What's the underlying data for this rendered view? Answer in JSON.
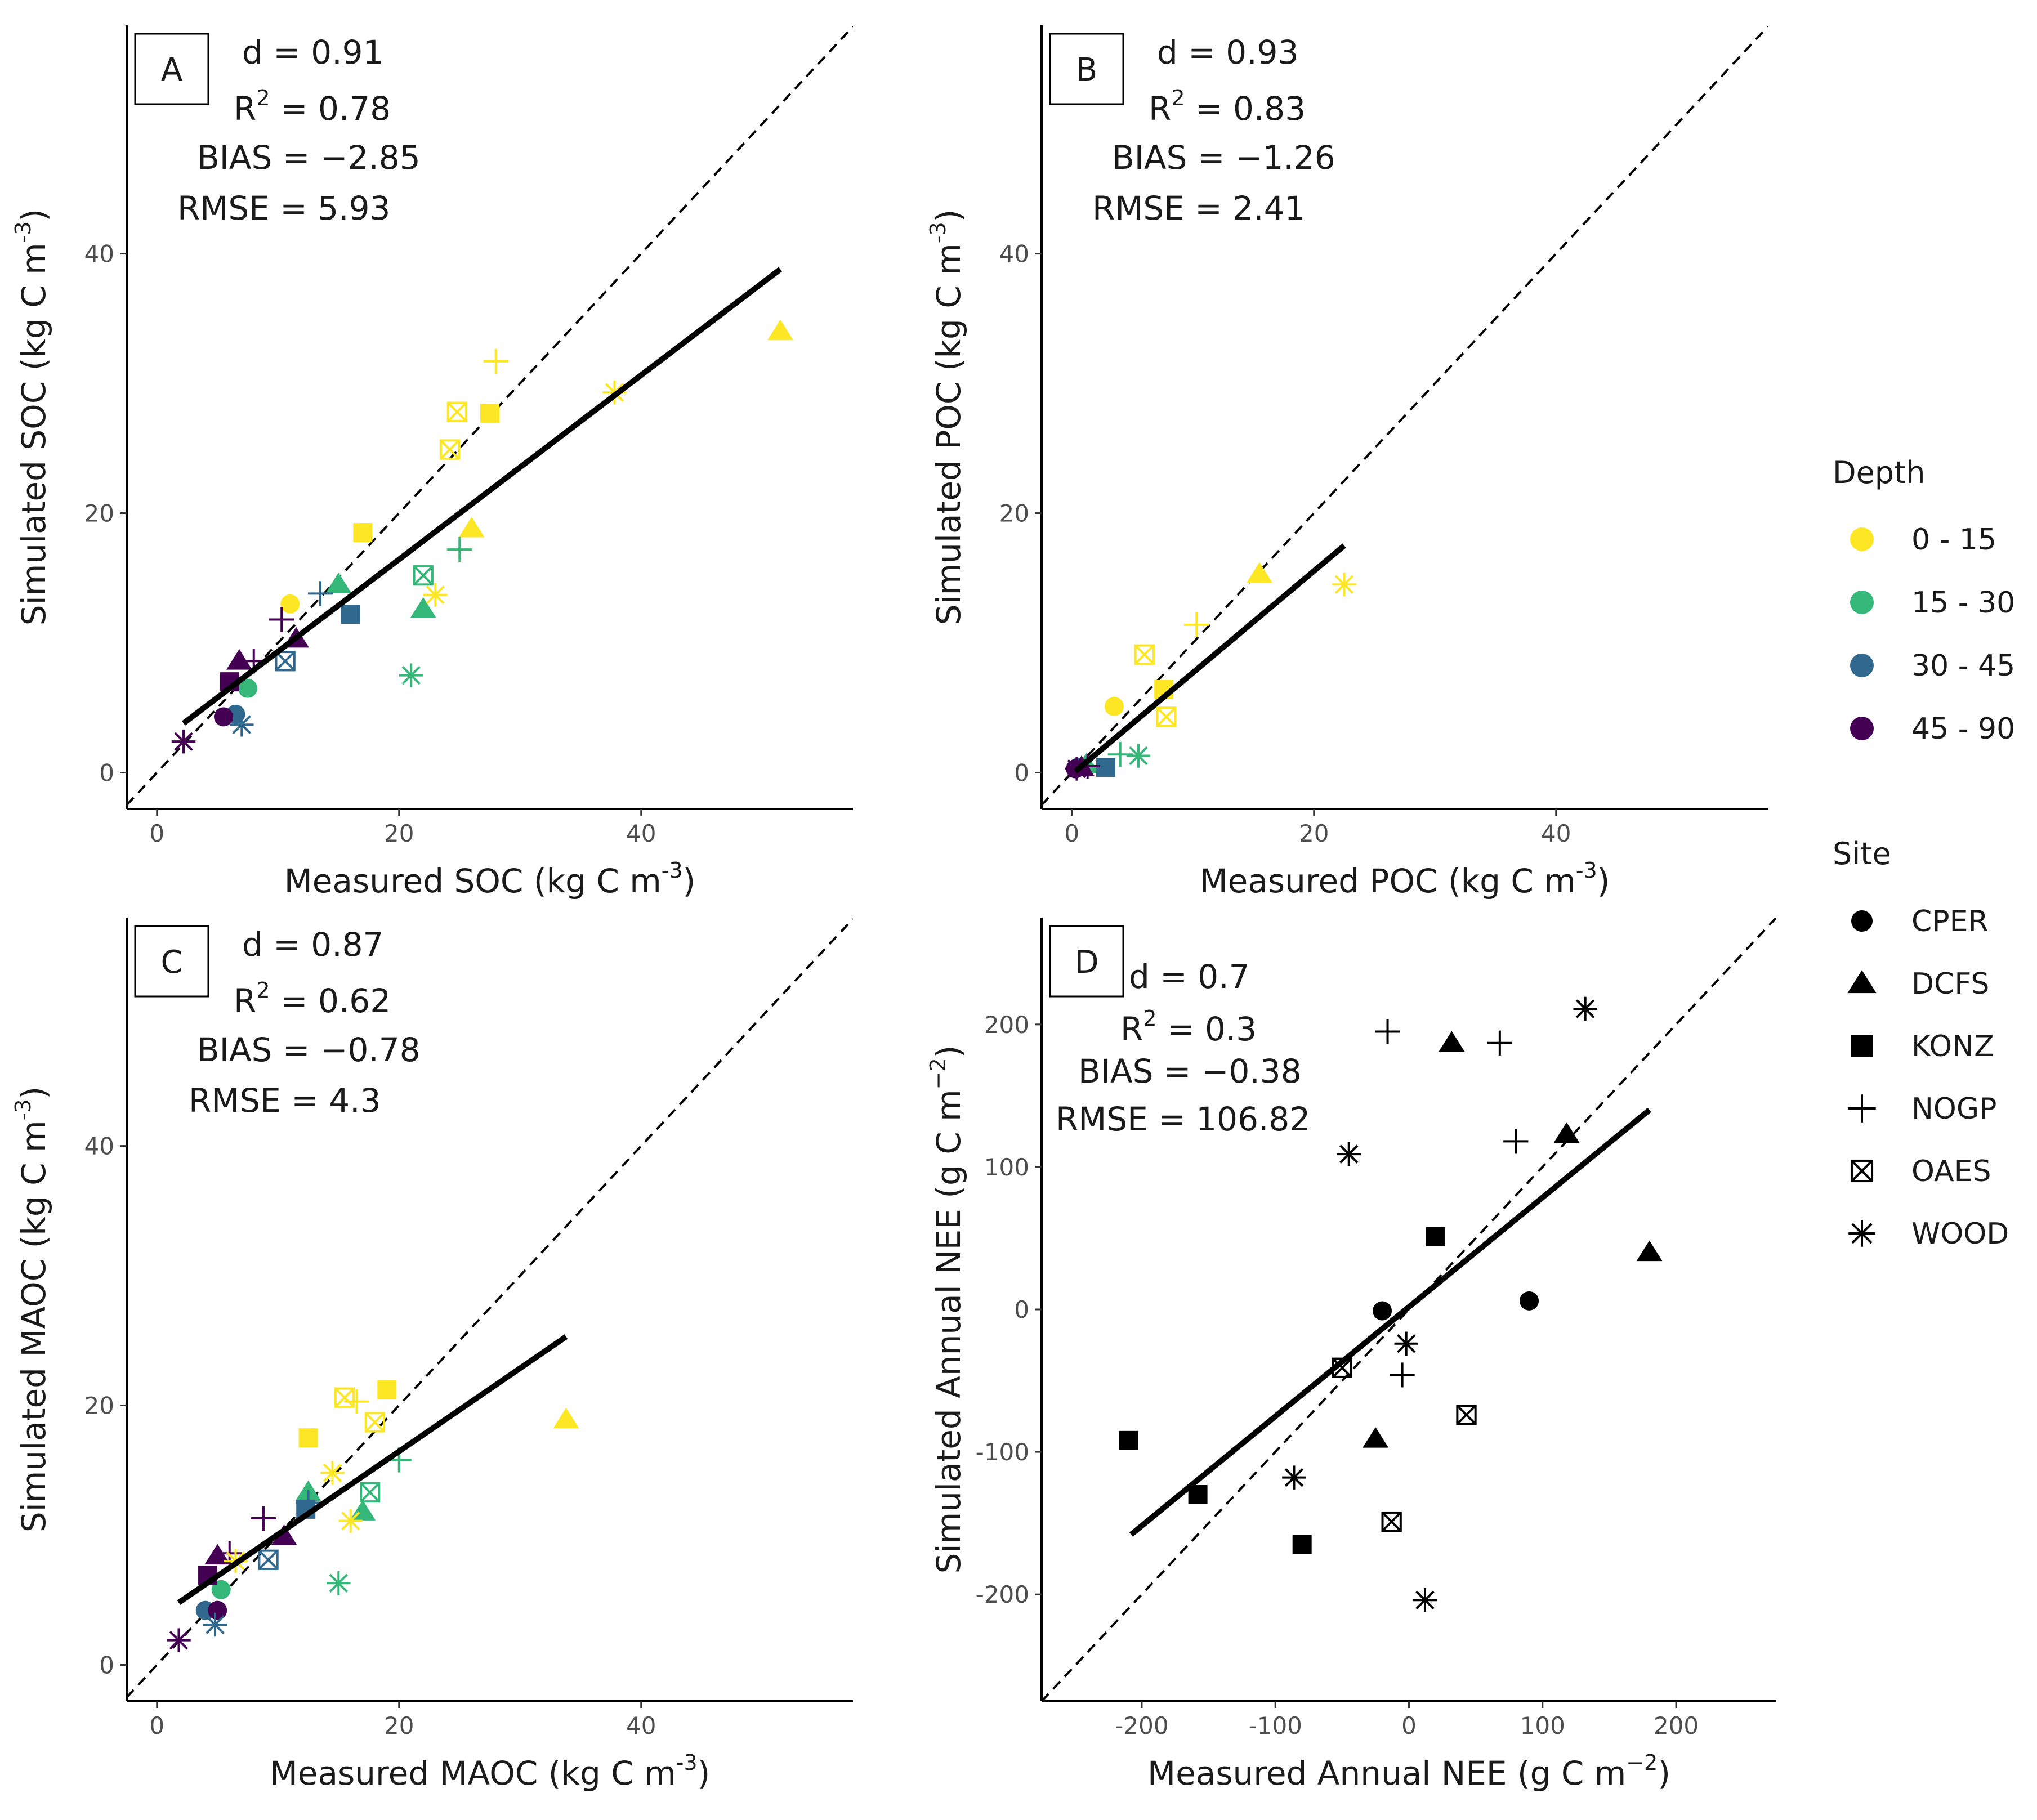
{
  "colors": {
    "depth_0_15": "#FDE725",
    "depth_15_30": "#35B779",
    "depth_30_45": "#31688E",
    "depth_45_90": "#440154",
    "black": "#000000"
  },
  "legend": {
    "depth_title": "Depth",
    "depth_items": [
      {
        "label": "0 - 15",
        "color_key": "depth_0_15"
      },
      {
        "label": "15 - 30",
        "color_key": "depth_15_30"
      },
      {
        "label": "30 - 45",
        "color_key": "depth_30_45"
      },
      {
        "label": "45 - 90",
        "color_key": "depth_45_90"
      }
    ],
    "site_title": "Site",
    "site_items": [
      {
        "label": "CPER",
        "shape": "circle"
      },
      {
        "label": "DCFS",
        "shape": "triangle"
      },
      {
        "label": "KONZ",
        "shape": "square"
      },
      {
        "label": "NOGP",
        "shape": "plus"
      },
      {
        "label": "OAES",
        "shape": "boxx"
      },
      {
        "label": "WOOD",
        "shape": "asterisk"
      }
    ]
  },
  "chart_data": [
    {
      "panel": "A",
      "type": "scatter",
      "xlabel": "Measured SOC (kg C m",
      "ylabel": "Simulated SOC (kg C m",
      "unit_sup": "-3",
      "xlim": [
        -2.5,
        57.5
      ],
      "ylim": [
        -2.8,
        57.6
      ],
      "xticks": [
        0,
        20,
        40
      ],
      "yticks": [
        0,
        20,
        40
      ],
      "stats": {
        "d": "d = 0.91",
        "r2_base": "R",
        "r2_sup": "2",
        "r2_val": " = 0.78",
        "bias": "BIAS = −2.85",
        "rmse": "RMSE = 5.93"
      },
      "fit": {
        "x1": 2.2,
        "y1": 3.8,
        "x2": 51.5,
        "y2": 38.8
      },
      "points": [
        {
          "x": 11,
          "y": 13,
          "shape": "circle",
          "depth": "depth_0_15"
        },
        {
          "x": 7.5,
          "y": 6.5,
          "shape": "circle",
          "depth": "depth_15_30"
        },
        {
          "x": 6.5,
          "y": 4.5,
          "shape": "circle",
          "depth": "depth_30_45"
        },
        {
          "x": 5.5,
          "y": 4.3,
          "shape": "circle",
          "depth": "depth_45_90"
        },
        {
          "x": 51.5,
          "y": 34,
          "shape": "triangle",
          "depth": "depth_0_15"
        },
        {
          "x": 26,
          "y": 18.8,
          "shape": "triangle",
          "depth": "depth_0_15"
        },
        {
          "x": 22,
          "y": 12.6,
          "shape": "triangle",
          "depth": "depth_15_30"
        },
        {
          "x": 15,
          "y": 14.5,
          "shape": "triangle",
          "depth": "depth_15_30"
        },
        {
          "x": 6.8,
          "y": 8.6,
          "shape": "triangle",
          "depth": "depth_45_90"
        },
        {
          "x": 11.5,
          "y": 10.3,
          "shape": "triangle",
          "depth": "depth_45_90"
        },
        {
          "x": 27.5,
          "y": 27.7,
          "shape": "square",
          "depth": "depth_0_15"
        },
        {
          "x": 17,
          "y": 18.5,
          "shape": "square",
          "depth": "depth_0_15"
        },
        {
          "x": 16,
          "y": 12.2,
          "shape": "square",
          "depth": "depth_30_45"
        },
        {
          "x": 6,
          "y": 7,
          "shape": "square",
          "depth": "depth_45_90"
        },
        {
          "x": 28,
          "y": 31.7,
          "shape": "plus",
          "depth": "depth_0_15"
        },
        {
          "x": 25,
          "y": 17.2,
          "shape": "plus",
          "depth": "depth_15_30"
        },
        {
          "x": 13.5,
          "y": 13.8,
          "shape": "plus",
          "depth": "depth_30_45"
        },
        {
          "x": 10.3,
          "y": 11.8,
          "shape": "plus",
          "depth": "depth_45_90"
        },
        {
          "x": 8,
          "y": 8.6,
          "shape": "plus",
          "depth": "depth_45_90"
        },
        {
          "x": 24.8,
          "y": 27.8,
          "shape": "boxx",
          "depth": "depth_0_15"
        },
        {
          "x": 24.2,
          "y": 24.9,
          "shape": "boxx",
          "depth": "depth_0_15"
        },
        {
          "x": 22,
          "y": 15.2,
          "shape": "boxx",
          "depth": "depth_15_30"
        },
        {
          "x": 10.6,
          "y": 8.6,
          "shape": "boxx",
          "depth": "depth_30_45"
        },
        {
          "x": 37.8,
          "y": 29.3,
          "shape": "asterisk",
          "depth": "depth_0_15"
        },
        {
          "x": 23,
          "y": 13.7,
          "shape": "asterisk",
          "depth": "depth_0_15"
        },
        {
          "x": 21,
          "y": 7.5,
          "shape": "asterisk",
          "depth": "depth_15_30"
        },
        {
          "x": 7,
          "y": 3.7,
          "shape": "asterisk",
          "depth": "depth_30_45"
        },
        {
          "x": 2.2,
          "y": 2.4,
          "shape": "asterisk",
          "depth": "depth_45_90"
        }
      ]
    },
    {
      "panel": "B",
      "type": "scatter",
      "xlabel": "Measured POC (kg C m",
      "ylabel": "Simulated POC (kg C m",
      "unit_sup": "-3",
      "xlim": [
        -2.5,
        57.5
      ],
      "ylim": [
        -2.8,
        57.6
      ],
      "xticks": [
        0,
        20,
        40
      ],
      "yticks": [
        0,
        20,
        40
      ],
      "stats": {
        "d": "d = 0.93",
        "r2_base": "R",
        "r2_sup": "2",
        "r2_val": " = 0.83",
        "bias": "BIAS = −1.26",
        "rmse": "RMSE = 2.41"
      },
      "fit": {
        "x1": 0.3,
        "y1": 0.1,
        "x2": 22.5,
        "y2": 17.5
      },
      "points": [
        {
          "x": 3.5,
          "y": 5.1,
          "shape": "circle",
          "depth": "depth_0_15"
        },
        {
          "x": 0.5,
          "y": 0.4,
          "shape": "circle",
          "depth": "depth_30_45"
        },
        {
          "x": 0.3,
          "y": 0.3,
          "shape": "circle",
          "depth": "depth_45_90"
        },
        {
          "x": 15.5,
          "y": 15.3,
          "shape": "triangle",
          "depth": "depth_0_15"
        },
        {
          "x": 1.2,
          "y": 0.6,
          "shape": "triangle",
          "depth": "depth_15_30"
        },
        {
          "x": 0.8,
          "y": 0.4,
          "shape": "triangle",
          "depth": "depth_45_90"
        },
        {
          "x": 7.6,
          "y": 6.4,
          "shape": "square",
          "depth": "depth_0_15"
        },
        {
          "x": 2.8,
          "y": 0.4,
          "shape": "square",
          "depth": "depth_30_45"
        },
        {
          "x": 10.3,
          "y": 11.4,
          "shape": "plus",
          "depth": "depth_0_15"
        },
        {
          "x": 4,
          "y": 1.4,
          "shape": "plus",
          "depth": "depth_15_30"
        },
        {
          "x": 1.3,
          "y": 0.5,
          "shape": "plus",
          "depth": "depth_45_90"
        },
        {
          "x": 6,
          "y": 9.1,
          "shape": "boxx",
          "depth": "depth_0_15"
        },
        {
          "x": 7.8,
          "y": 4.3,
          "shape": "boxx",
          "depth": "depth_0_15"
        },
        {
          "x": 22.5,
          "y": 14.5,
          "shape": "asterisk",
          "depth": "depth_0_15"
        },
        {
          "x": 5.5,
          "y": 1.3,
          "shape": "asterisk",
          "depth": "depth_15_30"
        },
        {
          "x": 0.4,
          "y": 0.3,
          "shape": "asterisk",
          "depth": "depth_45_90"
        }
      ]
    },
    {
      "panel": "C",
      "type": "scatter",
      "xlabel": "Measured MAOC (kg C m",
      "ylabel": "Simulated MAOC (kg C m",
      "unit_sup": "-3",
      "xlim": [
        -2.5,
        57.5
      ],
      "ylim": [
        -2.8,
        57.6
      ],
      "xticks": [
        0,
        20,
        40
      ],
      "yticks": [
        0,
        20,
        40
      ],
      "stats": {
        "d": "d = 0.87",
        "r2_base": "R",
        "r2_sup": "2",
        "r2_val": " = 0.62",
        "bias": "BIAS = −0.78",
        "rmse": "RMSE = 4.3"
      },
      "fit": {
        "x1": 1.8,
        "y1": 4.8,
        "x2": 33.8,
        "y2": 25.3
      },
      "points": [
        {
          "x": 5.3,
          "y": 5.8,
          "shape": "circle",
          "depth": "depth_15_30"
        },
        {
          "x": 4,
          "y": 4.2,
          "shape": "circle",
          "depth": "depth_30_45"
        },
        {
          "x": 5,
          "y": 4.2,
          "shape": "circle",
          "depth": "depth_45_90"
        },
        {
          "x": 33.8,
          "y": 18.9,
          "shape": "triangle",
          "depth": "depth_0_15"
        },
        {
          "x": 12.5,
          "y": 13.3,
          "shape": "triangle",
          "depth": "depth_15_30"
        },
        {
          "x": 17,
          "y": 11.8,
          "shape": "triangle",
          "depth": "depth_15_30"
        },
        {
          "x": 5,
          "y": 8.4,
          "shape": "triangle",
          "depth": "depth_45_90"
        },
        {
          "x": 10.5,
          "y": 9.9,
          "shape": "triangle",
          "depth": "depth_45_90"
        },
        {
          "x": 19,
          "y": 21.2,
          "shape": "square",
          "depth": "depth_0_15"
        },
        {
          "x": 12.5,
          "y": 17.5,
          "shape": "square",
          "depth": "depth_0_15"
        },
        {
          "x": 12.3,
          "y": 12,
          "shape": "square",
          "depth": "depth_30_45"
        },
        {
          "x": 4.2,
          "y": 6.9,
          "shape": "square",
          "depth": "depth_45_90"
        },
        {
          "x": 16.5,
          "y": 20.3,
          "shape": "plus",
          "depth": "depth_0_15"
        },
        {
          "x": 20,
          "y": 15.8,
          "shape": "plus",
          "depth": "depth_15_30"
        },
        {
          "x": 12.5,
          "y": 12.5,
          "shape": "plus",
          "depth": "depth_30_45"
        },
        {
          "x": 8.8,
          "y": 11.3,
          "shape": "plus",
          "depth": "depth_45_90"
        },
        {
          "x": 6,
          "y": 8.6,
          "shape": "plus",
          "depth": "depth_45_90"
        },
        {
          "x": 15.5,
          "y": 20.6,
          "shape": "boxx",
          "depth": "depth_0_15"
        },
        {
          "x": 18,
          "y": 18.7,
          "shape": "boxx",
          "depth": "depth_0_15"
        },
        {
          "x": 17.6,
          "y": 13.3,
          "shape": "boxx",
          "depth": "depth_15_30"
        },
        {
          "x": 9.2,
          "y": 8.1,
          "shape": "boxx",
          "depth": "depth_30_45"
        },
        {
          "x": 14.5,
          "y": 14.8,
          "shape": "asterisk",
          "depth": "depth_0_15"
        },
        {
          "x": 16,
          "y": 11.1,
          "shape": "asterisk",
          "depth": "depth_0_15"
        },
        {
          "x": 6.5,
          "y": 8,
          "shape": "asterisk",
          "depth": "depth_0_15"
        },
        {
          "x": 15,
          "y": 6.3,
          "shape": "asterisk",
          "depth": "depth_15_30"
        },
        {
          "x": 4.8,
          "y": 3.1,
          "shape": "asterisk",
          "depth": "depth_30_45"
        },
        {
          "x": 1.8,
          "y": 1.9,
          "shape": "asterisk",
          "depth": "depth_45_90"
        }
      ]
    },
    {
      "panel": "D",
      "type": "scatter",
      "xlabel": "Measured Annual NEE (g C m",
      "ylabel": "Simulated Annual NEE (g C m",
      "unit_sup": "−2",
      "xlim": [
        -275,
        275
      ],
      "ylim": [
        -275,
        275
      ],
      "xticks": [
        -200,
        -100,
        0,
        100,
        200
      ],
      "yticks": [
        -200,
        -100,
        0,
        100,
        200
      ],
      "stats": {
        "d": "d = 0.7",
        "r2_base": "R",
        "r2_sup": "2",
        "r2_val": " = 0.3",
        "bias": "BIAS = −0.38",
        "rmse": "RMSE = 106.82"
      },
      "fit": {
        "x1": -208,
        "y1": -158,
        "x2": 180,
        "y2": 140
      },
      "points": [
        {
          "x": -20,
          "y": -1,
          "shape": "circle",
          "depth": "black"
        },
        {
          "x": 90,
          "y": 6,
          "shape": "circle",
          "depth": "black"
        },
        {
          "x": 32,
          "y": 187,
          "shape": "triangle",
          "depth": "black"
        },
        {
          "x": 118,
          "y": 123,
          "shape": "triangle",
          "depth": "black"
        },
        {
          "x": 180,
          "y": 40,
          "shape": "triangle",
          "depth": "black"
        },
        {
          "x": -25,
          "y": -91,
          "shape": "triangle",
          "depth": "black"
        },
        {
          "x": 20,
          "y": 51,
          "shape": "square",
          "depth": "black"
        },
        {
          "x": -210,
          "y": -92,
          "shape": "square",
          "depth": "black"
        },
        {
          "x": -158,
          "y": -130,
          "shape": "square",
          "depth": "black"
        },
        {
          "x": -80,
          "y": -165,
          "shape": "square",
          "depth": "black"
        },
        {
          "x": -16,
          "y": 195,
          "shape": "plus",
          "depth": "black"
        },
        {
          "x": 68,
          "y": 187,
          "shape": "plus",
          "depth": "black"
        },
        {
          "x": 80,
          "y": 118,
          "shape": "plus",
          "depth": "black"
        },
        {
          "x": -5,
          "y": -46,
          "shape": "plus",
          "depth": "black"
        },
        {
          "x": -50,
          "y": -41,
          "shape": "boxx",
          "depth": "black"
        },
        {
          "x": 43,
          "y": -74,
          "shape": "boxx",
          "depth": "black"
        },
        {
          "x": -13,
          "y": -149,
          "shape": "boxx",
          "depth": "black"
        },
        {
          "x": 132,
          "y": 211,
          "shape": "asterisk",
          "depth": "black"
        },
        {
          "x": -45,
          "y": 109,
          "shape": "asterisk",
          "depth": "black"
        },
        {
          "x": -2,
          "y": -24,
          "shape": "asterisk",
          "depth": "black"
        },
        {
          "x": -86,
          "y": -118,
          "shape": "asterisk",
          "depth": "black"
        },
        {
          "x": 12,
          "y": -204,
          "shape": "asterisk",
          "depth": "black"
        }
      ]
    }
  ]
}
